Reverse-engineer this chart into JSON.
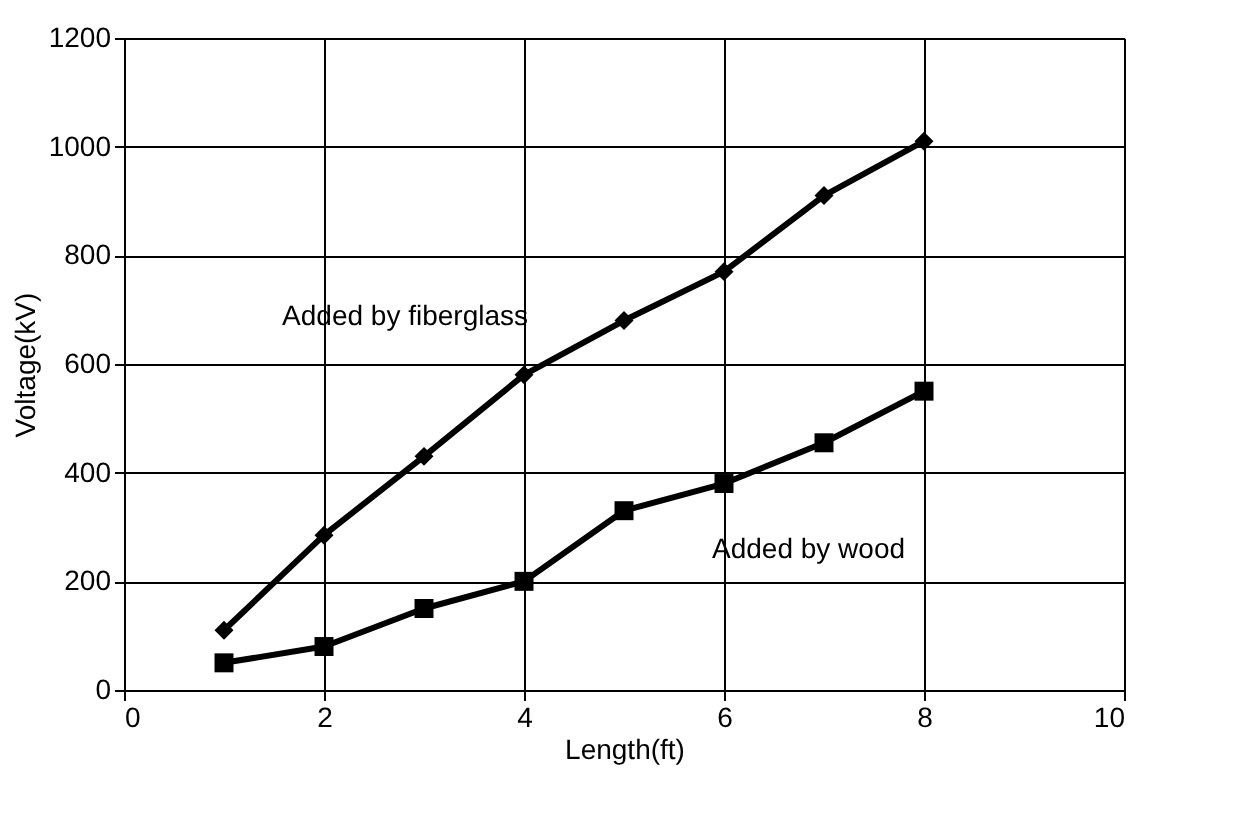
{
  "chart_data": {
    "type": "line",
    "xlabel": "Length(ft)",
    "ylabel": "Voltage(kV)",
    "x": [
      1,
      2,
      3,
      4,
      5,
      6,
      7,
      8
    ],
    "series": [
      {
        "name": "Added by fiberglass",
        "color": "#000000",
        "marker": "diamond",
        "values": [
          110,
          285,
          430,
          580,
          680,
          770,
          910,
          1010
        ]
      },
      {
        "name": "Added by wood",
        "color": "#000000",
        "marker": "square",
        "values": [
          50,
          80,
          150,
          200,
          330,
          380,
          455,
          550
        ]
      }
    ],
    "xlim": [
      0,
      10
    ],
    "xticks": [
      0,
      2,
      4,
      6,
      8,
      10
    ],
    "ylim": [
      0,
      1200
    ],
    "yticks": [
      0,
      200,
      400,
      600,
      800,
      1000,
      1200
    ],
    "grid": true,
    "line_style": "solid"
  }
}
